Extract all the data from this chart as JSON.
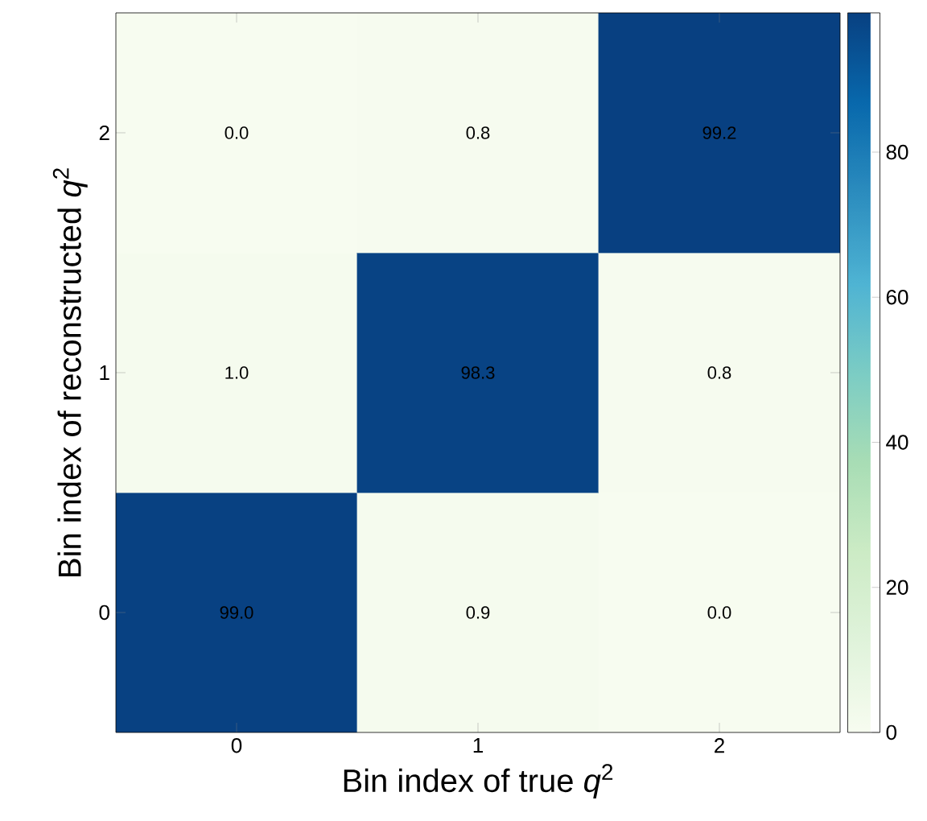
{
  "chart_data": {
    "type": "heatmap",
    "xlabel": "Bin index of true *q*$^{2}$",
    "ylabel": "Bin index of reconstructed *q*$^{2}$",
    "categories": [
      "0",
      "1",
      "2"
    ],
    "y_categories": [
      "2",
      "1",
      "0"
    ],
    "cells": [
      [
        0.0,
        0.8,
        99.2
      ],
      [
        1.0,
        98.3,
        0.8
      ],
      [
        99.0,
        0.9,
        0.0
      ]
    ],
    "cell_labels": [
      [
        "0.0",
        "0.8",
        "99.2"
      ],
      [
        "1.0",
        "98.3",
        "0.8"
      ],
      [
        "99.0",
        "0.9",
        "0.0"
      ]
    ],
    "clim": [
      0,
      99.2
    ],
    "cticks": [
      0,
      20,
      40,
      60,
      80
    ]
  }
}
